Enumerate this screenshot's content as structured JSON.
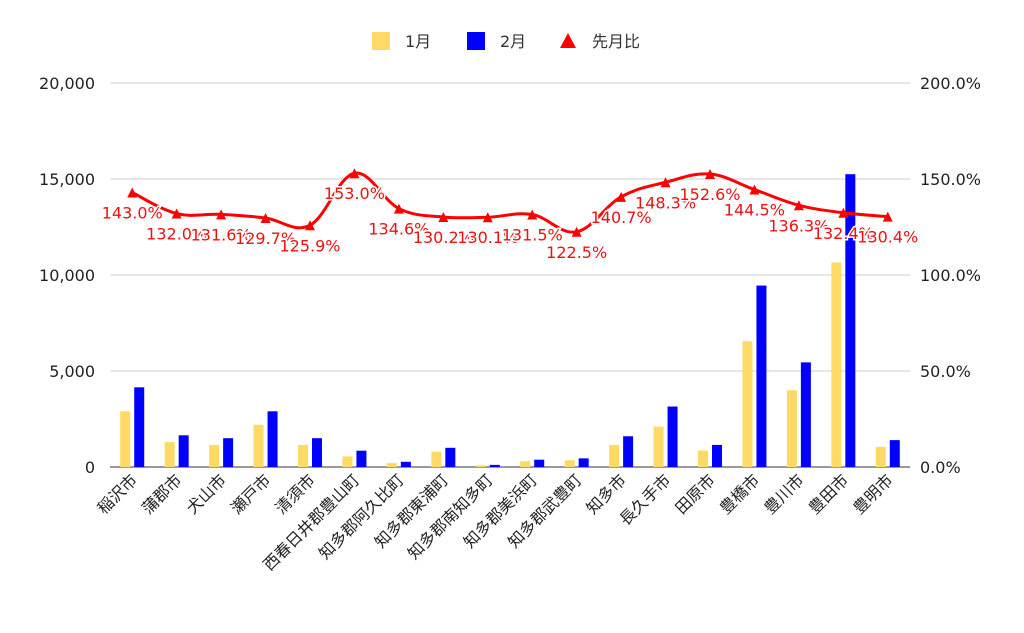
{
  "chart_data": {
    "type": "bar",
    "categories": [
      "稲沢市",
      "蒲郡市",
      "犬山市",
      "瀬戸市",
      "清須市",
      "西春日井郡豊山町",
      "知多郡阿久比町",
      "知多郡東浦町",
      "知多郡南知多町",
      "知多郡美浜町",
      "知多郡武豊町",
      "知多市",
      "長久手市",
      "田原市",
      "豊橋市",
      "豊川市",
      "豊田市",
      "豊明市"
    ],
    "series": [
      {
        "name": "1月",
        "type": "bar",
        "axis": "left",
        "color": "#FFD966",
        "values": [
          2900,
          1300,
          1150,
          2200,
          1150,
          550,
          200,
          800,
          90,
          300,
          350,
          1150,
          2100,
          850,
          6550,
          4000,
          10650,
          1050
        ]
      },
      {
        "name": "2月",
        "type": "bar",
        "axis": "left",
        "color": "#0000FF",
        "values": [
          4150,
          1650,
          1500,
          2900,
          1500,
          850,
          270,
          1000,
          110,
          380,
          450,
          1600,
          3150,
          1150,
          9450,
          5450,
          15250,
          1400
        ]
      },
      {
        "name": "先月比",
        "type": "line",
        "axis": "right",
        "color": "#FF0000",
        "values": [
          143.0,
          132.0,
          131.6,
          129.7,
          125.9,
          153.0,
          134.6,
          130.2,
          130.1,
          131.5,
          122.5,
          140.7,
          148.3,
          152.6,
          144.5,
          136.3,
          132.4,
          130.4
        ],
        "labels": [
          "143.0%",
          "132.0%",
          "131.6%",
          "129.7%",
          "125.9%",
          "153.0%",
          "134.6%",
          "130.2%",
          "130.1%",
          "131.5%",
          "122.5%",
          "140.7%",
          "148.3%",
          "152.6%",
          "144.5%",
          "136.3%",
          "132.4%",
          "130.4%"
        ]
      }
    ],
    "y_left": {
      "min": 0,
      "max": 20000,
      "ticks": [
        "0",
        "5,000",
        "10,000",
        "15,000",
        "20,000"
      ]
    },
    "y_right": {
      "min": 0,
      "max": 200,
      "ticks": [
        "0.0%",
        "50.0%",
        "100.0%",
        "150.0%",
        "200.0%"
      ]
    },
    "grid": true,
    "legend_position": "top"
  }
}
